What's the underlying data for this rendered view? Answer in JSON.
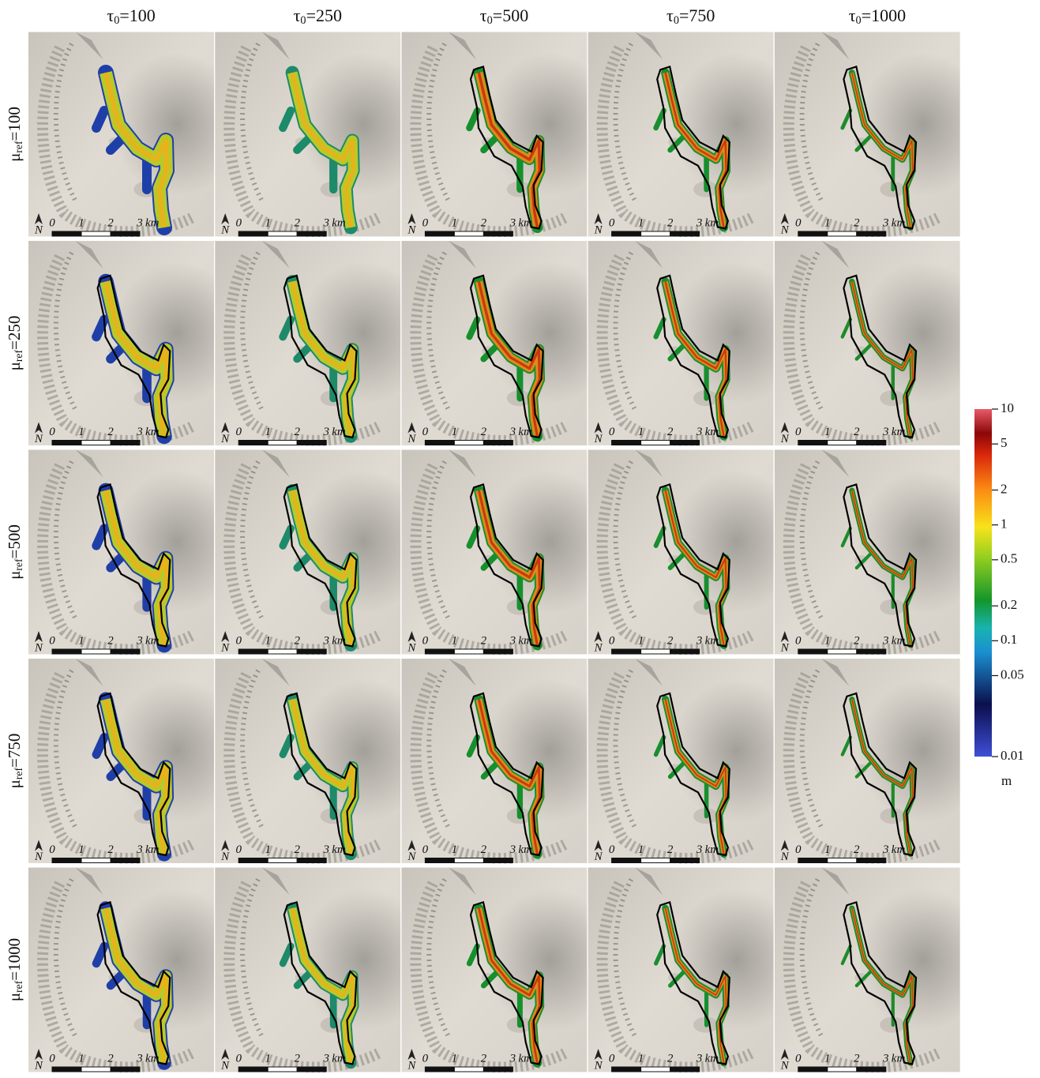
{
  "column_headers": [
    {
      "symbol": "τ",
      "subscript": "0",
      "text": "=100"
    },
    {
      "symbol": "τ",
      "subscript": "0",
      "text": "=250"
    },
    {
      "symbol": "τ",
      "subscript": "0",
      "text": "=500"
    },
    {
      "symbol": "τ",
      "subscript": "0",
      "text": "=750"
    },
    {
      "symbol": "τ",
      "subscript": "0",
      "text": "=1000"
    }
  ],
  "row_labels": [
    {
      "symbol": "μ",
      "subscript": "ref",
      "text": "=100"
    },
    {
      "symbol": "μ",
      "subscript": "ref",
      "text": "=250"
    },
    {
      "symbol": "μ",
      "subscript": "ref",
      "text": "=500"
    },
    {
      "symbol": "μ",
      "subscript": "ref",
      "text": "=750"
    },
    {
      "symbol": "μ",
      "subscript": "ref",
      "text": "=1000"
    }
  ],
  "scale_bar": {
    "north": "N",
    "labels": [
      "0",
      "1",
      "2",
      "3"
    ],
    "unit": "km"
  },
  "colorbar": {
    "scale": "log",
    "range": [
      0.01,
      10
    ],
    "ticks": [
      10,
      5,
      2,
      1,
      0.5,
      0.2,
      0.1,
      0.05,
      0.01
    ],
    "unit": "m"
  }
}
